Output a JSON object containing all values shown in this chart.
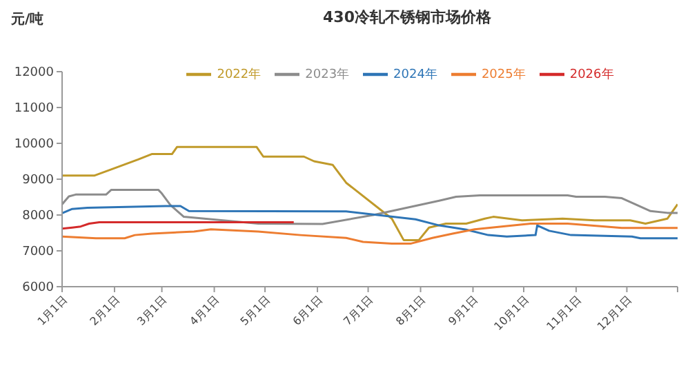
{
  "chart_data": {
    "type": "line",
    "title": "430冷轧不锈钢市场价格",
    "ylabel": "元/吨",
    "legend": "top",
    "xlim": [
      "--01-01",
      "--12-31"
    ],
    "xticks": [
      {
        "value": "--01-01",
        "label": "1月1日"
      },
      {
        "value": "--02-01",
        "label": "2月1日"
      },
      {
        "value": "--03-01",
        "label": "3月1日"
      },
      {
        "value": "--04-01",
        "label": "4月1日"
      },
      {
        "value": "--05-01",
        "label": "5月1日"
      },
      {
        "value": "--06-01",
        "label": "6月1日"
      },
      {
        "value": "--07-01",
        "label": "7月1日"
      },
      {
        "value": "--08-01",
        "label": "8月1日"
      },
      {
        "value": "--09-01",
        "label": "9月1日"
      },
      {
        "value": "--10-01",
        "label": "10月1日"
      },
      {
        "value": "--11-01",
        "label": "11月1日"
      },
      {
        "value": "--12-01",
        "label": "12月1日"
      },
      {
        "value": "--12-31",
        "label": null
      }
    ],
    "ylim": [
      6000,
      12000
    ],
    "yticks": [
      6000,
      7000,
      8000,
      9000,
      10000,
      11000,
      12000
    ],
    "series": [
      {
        "name": "2022年",
        "color": "#c09a2a",
        "x": [
          "--01-01",
          "--01-20",
          "--01-30",
          "--02-15",
          "--02-23",
          "--03-07",
          "--03-10",
          "--04-26",
          "--04-30",
          "--05-24",
          "--05-30",
          "--06-10",
          "--06-18",
          "--07-15",
          "--07-22",
          "--07-31",
          "--08-06",
          "--08-16",
          "--08-28",
          "--09-08",
          "--09-13",
          "--09-30",
          "--10-24",
          "--11-12",
          "--12-03",
          "--12-12",
          "--12-25",
          "--12-31"
        ],
        "values": [
          9100,
          9100,
          9270,
          9550,
          9700,
          9700,
          9900,
          9900,
          9630,
          9630,
          9500,
          9400,
          8900,
          7900,
          7300,
          7300,
          7650,
          7760,
          7760,
          7900,
          7950,
          7850,
          7900,
          7850,
          7850,
          7760,
          7900,
          8300
        ]
      },
      {
        "name": "2023年",
        "color": "#8c8c8c",
        "x": [
          "--01-01",
          "--01-05",
          "--01-09",
          "--01-27",
          "--01-30",
          "--02-27",
          "--03-01",
          "--03-06",
          "--03-14",
          "--04-27",
          "--06-04",
          "--07-04",
          "--08-12",
          "--08-22",
          "--09-05",
          "--10-27",
          "--11-01",
          "--11-18",
          "--11-28",
          "--12-15",
          "--12-25",
          "--12-31"
        ],
        "values": [
          8300,
          8520,
          8570,
          8570,
          8700,
          8700,
          8600,
          8280,
          7950,
          7760,
          7750,
          8000,
          8400,
          8510,
          8550,
          8550,
          8510,
          8510,
          8470,
          8110,
          8060,
          8060
        ]
      },
      {
        "name": "2024年",
        "color": "#2e75b6",
        "x": [
          "--01-01",
          "--01-07",
          "--01-16",
          "--03-03",
          "--03-12",
          "--03-17",
          "--06-18",
          "--07-29",
          "--08-12",
          "--08-28",
          "--09-10",
          "--09-21",
          "--10-08",
          "--10-09",
          "--10-16",
          "--10-29",
          "--12-04",
          "--12-09",
          "--12-31"
        ],
        "values": [
          8050,
          8170,
          8200,
          8250,
          8250,
          8110,
          8100,
          7880,
          7710,
          7590,
          7440,
          7400,
          7440,
          7710,
          7560,
          7440,
          7400,
          7350,
          7350
        ]
      },
      {
        "name": "2025年",
        "color": "#ed7d31",
        "x": [
          "--01-01",
          "--01-21",
          "--02-07",
          "--02-13",
          "--02-23",
          "--03-20",
          "--03-30",
          "--04-27",
          "--05-22",
          "--06-18",
          "--06-28",
          "--07-15",
          "--07-26",
          "--08-08",
          "--08-20",
          "--09-02",
          "--09-18",
          "--10-05",
          "--10-27",
          "--11-18",
          "--11-28",
          "--12-31"
        ],
        "values": [
          7400,
          7350,
          7350,
          7440,
          7480,
          7540,
          7600,
          7540,
          7440,
          7360,
          7250,
          7200,
          7200,
          7360,
          7480,
          7600,
          7680,
          7760,
          7760,
          7680,
          7640,
          7640
        ]
      },
      {
        "name": "2026年",
        "color": "#d42a2a",
        "x": [
          "--01-01",
          "--01-07",
          "--01-12",
          "--01-17",
          "--01-23",
          "--05-18"
        ],
        "values": [
          7620,
          7650,
          7680,
          7760,
          7800,
          7800
        ]
      }
    ]
  }
}
